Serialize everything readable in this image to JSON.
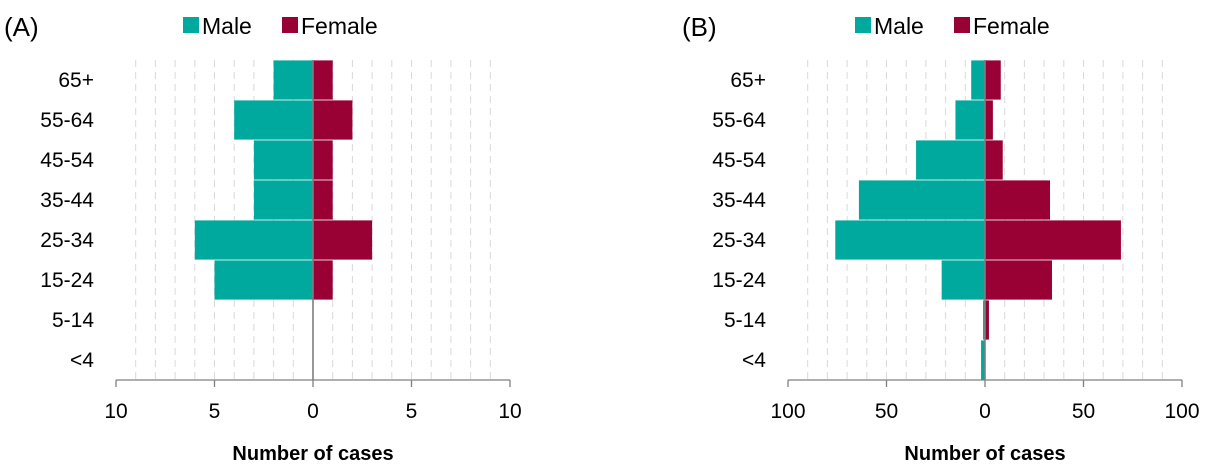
{
  "chart_data": [
    {
      "type": "bar",
      "orientation": "horizontal-pyramid",
      "panel_label": "(A)",
      "categories": [
        "65+",
        "55-64",
        "45-54",
        "35-44",
        "25-34",
        "15-24",
        "5-14",
        "<4"
      ],
      "series": [
        {
          "name": "Male",
          "color": "#00A99D",
          "values": [
            2,
            4,
            3,
            3,
            6,
            5,
            0,
            0
          ]
        },
        {
          "name": "Female",
          "color": "#990033",
          "values": [
            1,
            2,
            1,
            1,
            3,
            1,
            0,
            0
          ]
        }
      ],
      "xlim": [
        -10,
        10
      ],
      "xticks": [
        -10,
        -5,
        0,
        5,
        10
      ],
      "xtick_labels": [
        "10",
        "5",
        "0",
        "5",
        "10"
      ],
      "grid_step": 1,
      "xlabel": "Number of cases",
      "legend_position": "top",
      "grid": true
    },
    {
      "type": "bar",
      "orientation": "horizontal-pyramid",
      "panel_label": "(B)",
      "categories": [
        "65+",
        "55-64",
        "45-54",
        "35-44",
        "25-34",
        "15-24",
        "5-14",
        "<4"
      ],
      "series": [
        {
          "name": "Male",
          "color": "#00A99D",
          "values": [
            7,
            15,
            35,
            64,
            76,
            22,
            1,
            2
          ]
        },
        {
          "name": "Female",
          "color": "#990033",
          "values": [
            8,
            4,
            9,
            33,
            69,
            34,
            2,
            0
          ]
        }
      ],
      "xlim": [
        -100,
        100
      ],
      "xticks": [
        -100,
        -50,
        0,
        50,
        100
      ],
      "xtick_labels": [
        "100",
        "50",
        "0",
        "50",
        "100"
      ],
      "grid_step": 10,
      "xlabel": "Number of cases",
      "legend_position": "top",
      "grid": true
    }
  ]
}
